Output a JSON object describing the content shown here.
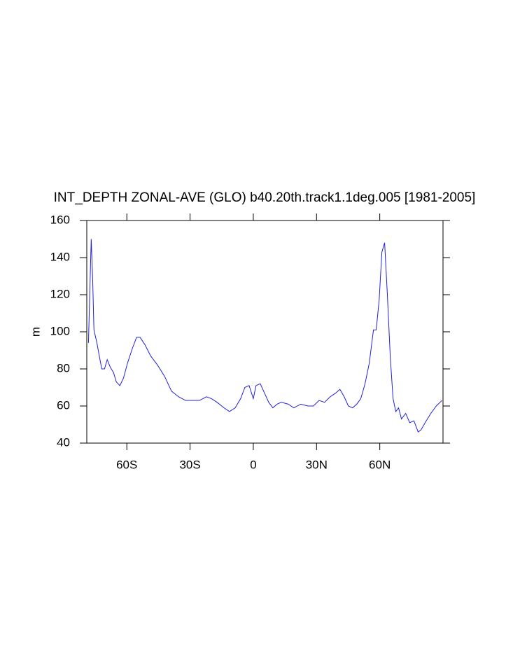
{
  "chart_data": {
    "type": "line",
    "title": "INT_DEPTH ZONAL-AVE (GLO) b40.20th.track1.1deg.005 [1981-2005]",
    "y_label": "m",
    "x": [
      -78.2,
      -77.6,
      -76.9,
      -76.2,
      -75.6,
      -74.2,
      -72.9,
      -71.9,
      -70.6,
      -69.3,
      -67.9,
      -66.3,
      -65,
      -63.3,
      -61.6,
      -59.7,
      -57.7,
      -55.4,
      -53.7,
      -51.4,
      -48.7,
      -45.4,
      -42.1,
      -38.8,
      -35.5,
      -32.2,
      -28.8,
      -25.5,
      -22.2,
      -19.9,
      -17.2,
      -13.9,
      -11.3,
      -8.6,
      -6,
      -4,
      -2,
      0,
      1.3,
      3.3,
      5.3,
      7.3,
      9.3,
      11.3,
      13.3,
      16.6,
      19.2,
      22.5,
      25.9,
      28.5,
      31.2,
      33.8,
      36.5,
      39.1,
      41.1,
      43.1,
      45.1,
      47.1,
      49.1,
      51,
      53,
      55,
      57,
      58.3,
      59.7,
      61,
      62.3,
      63.6,
      65,
      66.3,
      67.6,
      68.9,
      70.3,
      72.3,
      74.2,
      76.2,
      78.2,
      79.5,
      81.5,
      84.2,
      86.8,
      89.5
    ],
    "series": [
      {
        "color": "#2020e0",
        "values": [
          94,
          120,
          150,
          128,
          101,
          94,
          86,
          80,
          80,
          85,
          81,
          78,
          73,
          71,
          75,
          83,
          90,
          97,
          97,
          93,
          87,
          82,
          76,
          68,
          65,
          63,
          63,
          63,
          65,
          64,
          62,
          59,
          57,
          59,
          64,
          70,
          71,
          64,
          71,
          72,
          67,
          62,
          59,
          61,
          62,
          61,
          59,
          61,
          60,
          60,
          63,
          62,
          65,
          67,
          69,
          65,
          60,
          59,
          61,
          64,
          72,
          83,
          101,
          101,
          117,
          143,
          148,
          120,
          86,
          64,
          57,
          59,
          53,
          56,
          51,
          52,
          46,
          47,
          51,
          56,
          60,
          63
        ]
      }
    ],
    "xlim": [
      -79,
      90
    ],
    "ylim": [
      40,
      160
    ],
    "xticks": [
      {
        "value": -60,
        "label": "60S"
      },
      {
        "value": -30,
        "label": "30S"
      },
      0,
      {
        "value": 30,
        "label": "30N"
      },
      {
        "value": 60,
        "label": "60N"
      }
    ],
    "yticks": [
      40,
      60,
      80,
      100,
      120,
      140,
      160
    ]
  }
}
